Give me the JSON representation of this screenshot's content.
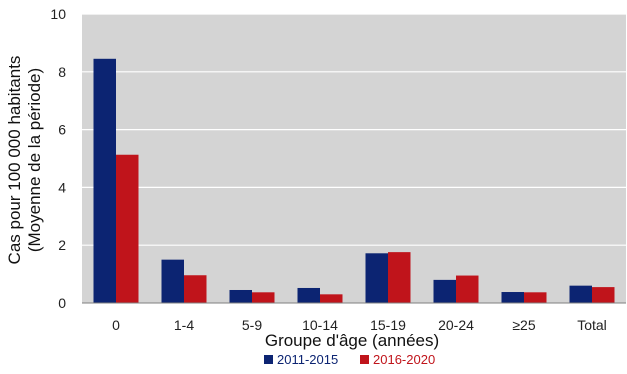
{
  "chart_data": {
    "type": "bar",
    "categories": [
      "0",
      "1-4",
      "5-9",
      "10-14",
      "15-19",
      "20-24",
      "≥25",
      "Total"
    ],
    "series": [
      {
        "name": "2011-2015",
        "color": "#0c2472",
        "values": [
          8.45,
          1.5,
          0.45,
          0.52,
          1.72,
          0.8,
          0.38,
          0.6
        ]
      },
      {
        "name": "2016-2020",
        "color": "#c0141b",
        "values": [
          5.13,
          0.96,
          0.37,
          0.3,
          1.76,
          0.95,
          0.37,
          0.55
        ]
      }
    ],
    "xlabel": "Groupe d'âge (années)",
    "ylabel": "Cas pour 100 000 habitants",
    "ylabel2": "(Moyenne de la période)",
    "ylim": [
      0,
      10
    ],
    "yticks": [
      0,
      2,
      4,
      6,
      8,
      10
    ],
    "grid": true,
    "plot_background": "#d4d4d4",
    "legend_position": "bottom"
  }
}
